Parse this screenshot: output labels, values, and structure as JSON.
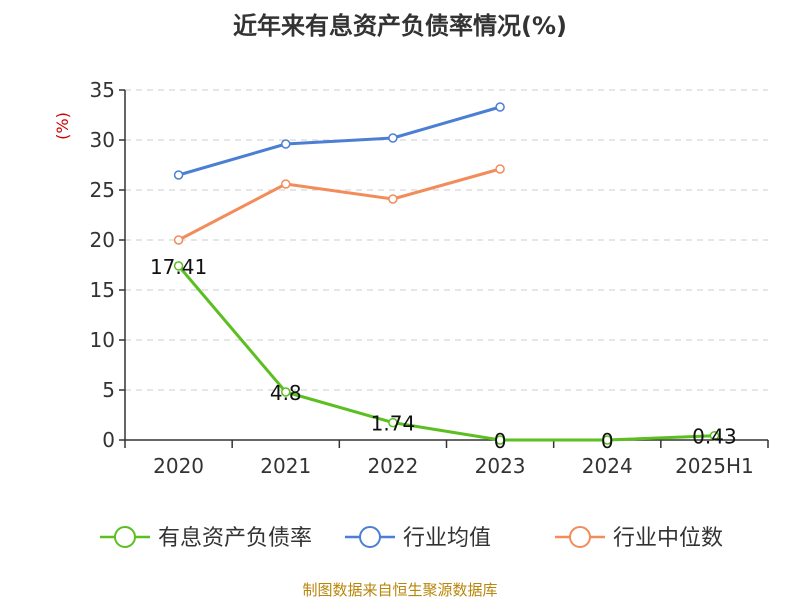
{
  "chart_data": {
    "type": "line",
    "title": "近年来有息资产负债率情况(%)",
    "ylabel": "(%)",
    "categories": [
      "2020",
      "2021",
      "2022",
      "2023",
      "2024",
      "2025H1"
    ],
    "ylim": [
      0,
      35
    ],
    "yticks": [
      0,
      5,
      10,
      15,
      20,
      25,
      30,
      35
    ],
    "grid": true,
    "legend_position": "bottom",
    "series": [
      {
        "name": "有息资产负债率",
        "color": "#5cbf21",
        "values": [
          17.41,
          4.8,
          1.74,
          0,
          0,
          0.43
        ],
        "data_labels": [
          "17.41",
          "4.8",
          "1.74",
          "0",
          "0",
          "0.43"
        ]
      },
      {
        "name": "行业均值",
        "color": "#4a7fd4",
        "values": [
          26.5,
          29.6,
          30.2,
          33.3,
          null,
          null
        ]
      },
      {
        "name": "行业中位数",
        "color": "#f28c5a",
        "values": [
          20.0,
          25.6,
          24.1,
          27.1,
          null,
          null
        ]
      }
    ]
  },
  "source": "制图数据来自恒生聚源数据库"
}
